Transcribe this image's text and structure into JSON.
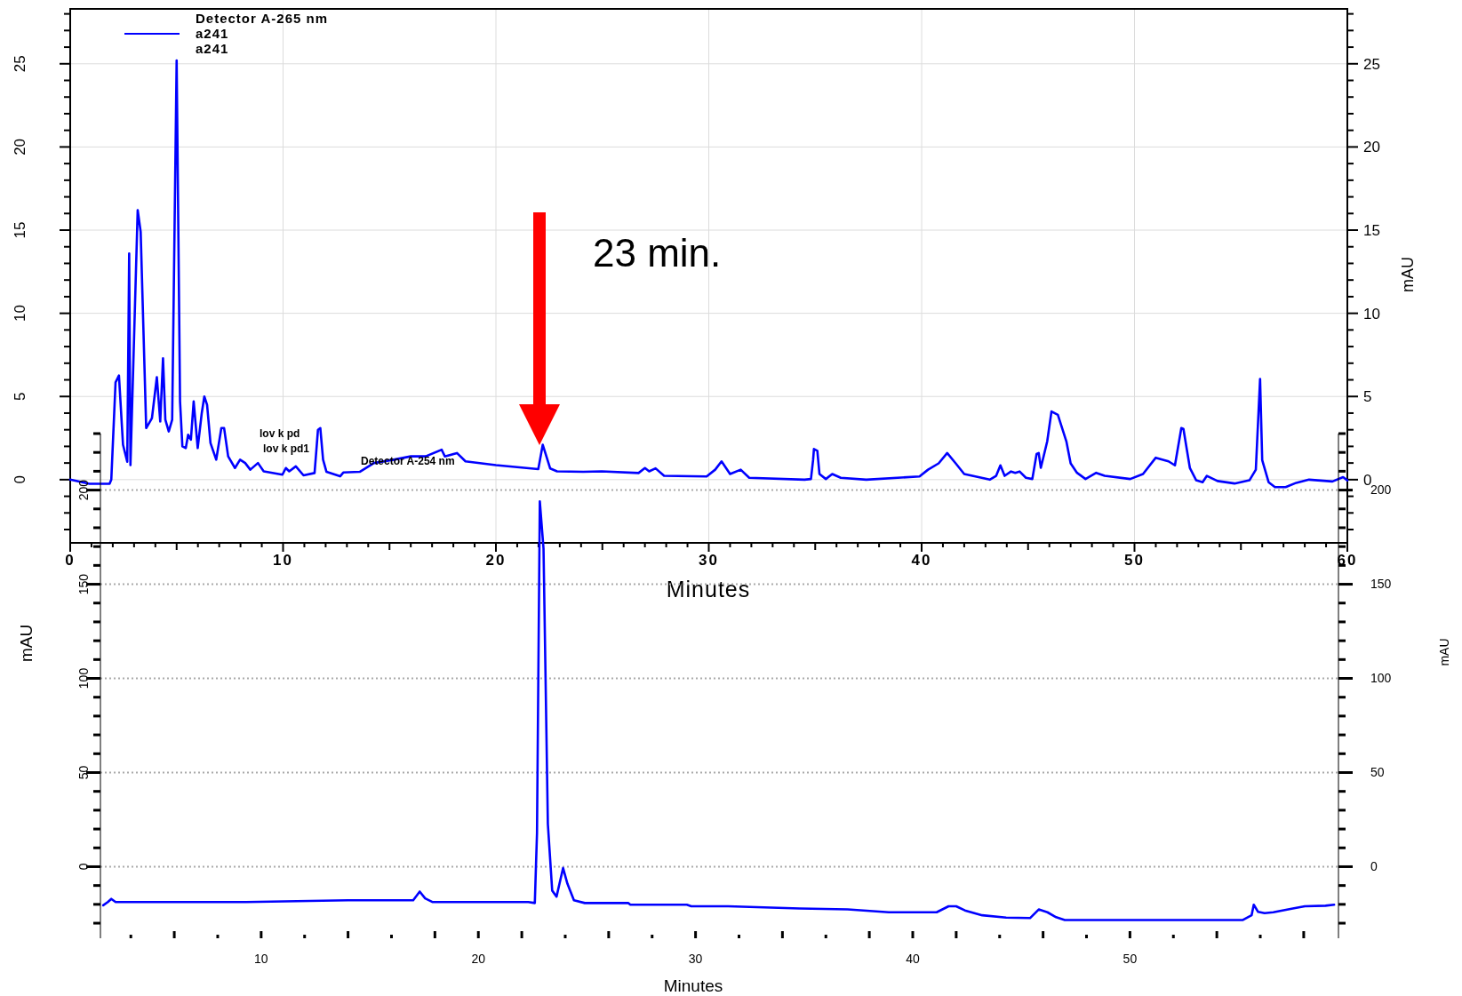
{
  "chart_data": [
    {
      "type": "line",
      "legend_title": "Detector A-265 nm",
      "xlabel": "Minutes",
      "y2label": "mAU",
      "xlim": [
        0,
        60
      ],
      "xticks": [
        0,
        10,
        20,
        30,
        40,
        50,
        60
      ],
      "ylim": [
        -3.8,
        28.3
      ],
      "yticks": [
        0,
        5,
        10,
        15,
        20,
        25
      ],
      "y2lim": [
        -3.8,
        28.3
      ],
      "y2ticks": [
        0,
        5,
        10,
        15,
        20,
        25
      ],
      "grid": true,
      "legend": "top left",
      "marker": "none",
      "line_style": "solid",
      "annotations": [
        "lov k pd",
        "lov k pd1",
        "Detector A-254 nm",
        "23 min."
      ],
      "series": [
        {
          "name": "a241",
          "color": "#0000ff",
          "x": [
            0,
            0.9,
            1.85,
            1.93,
            2.13,
            2.29,
            2.48,
            2.68,
            2.77,
            2.83,
            3.17,
            3.31,
            3.57,
            3.84,
            4.07,
            4.23,
            4.36,
            4.47,
            4.63,
            4.79,
            5.0,
            5.16,
            5.27,
            5.43,
            5.54,
            5.67,
            5.8,
            5.99,
            6.18,
            6.3,
            6.43,
            6.59,
            6.86,
            7.1,
            7.23,
            7.42,
            7.74,
            7.98,
            8.22,
            8.46,
            8.82,
            9.09,
            9.97,
            10.13,
            10.29,
            10.6,
            10.96,
            11.48,
            11.64,
            11.75,
            11.88,
            12.04,
            12.68,
            12.83,
            13.6,
            14.27,
            15.2,
            16.0,
            16.7,
            17.45,
            17.6,
            18.17,
            18.57,
            20.0,
            21.99,
            22.2,
            22.55,
            22.87,
            24.1,
            24.97,
            26.7,
            27.0,
            27.2,
            27.5,
            27.9,
            29.9,
            30.3,
            30.6,
            31.0,
            31.5,
            31.9,
            34.5,
            34.8,
            34.9,
            34.94,
            35.1,
            35.2,
            35.5,
            35.8,
            36.2,
            37.4,
            39.9,
            40.3,
            40.8,
            41.2,
            41.6,
            42.0,
            43.2,
            43.5,
            43.7,
            43.9,
            44.2,
            44.4,
            44.6,
            44.9,
            45.2,
            45.4,
            45.5,
            45.6,
            45.9,
            46.1,
            46.4,
            46.8,
            47.0,
            47.3,
            47.7,
            48.2,
            48.6,
            49.8,
            50.4,
            51.0,
            51.6,
            51.9,
            52.2,
            52.3,
            52.6,
            52.9,
            53.2,
            53.4,
            53.9,
            54.7,
            55.4,
            55.7,
            55.9,
            56.0,
            56.3,
            56.6,
            57.1,
            57.6,
            58.2,
            59.3,
            59.8,
            60.0
          ],
          "values": [
            0,
            -0.25,
            -0.25,
            0,
            5.85,
            6.26,
            2.1,
            1.08,
            13.6,
            0.87,
            16.2,
            14.9,
            3.1,
            3.7,
            6.16,
            3.5,
            7.3,
            3.6,
            2.9,
            3.6,
            25.2,
            4.7,
            2.0,
            1.9,
            2.7,
            2.4,
            4.7,
            1.9,
            4.0,
            5.0,
            4.5,
            2.2,
            1.2,
            3.1,
            3.1,
            1.4,
            0.7,
            1.2,
            1.0,
            0.6,
            1.0,
            0.5,
            0.3,
            0.7,
            0.5,
            0.8,
            0.26,
            0.4,
            3.0,
            3.1,
            1.2,
            0.47,
            0.2,
            0.43,
            0.47,
            1.0,
            1.2,
            1.4,
            1.4,
            1.8,
            1.4,
            1.6,
            1.1,
            0.87,
            0.63,
            2.1,
            0.67,
            0.5,
            0.47,
            0.5,
            0.4,
            0.7,
            0.5,
            0.68,
            0.23,
            0.19,
            0.6,
            1.1,
            0.34,
            0.6,
            0.11,
            0,
            0.04,
            1.17,
            1.84,
            1.73,
            0.34,
            0.04,
            0.34,
            0.11,
            0,
            0.19,
            0.6,
            0.98,
            1.6,
            0.98,
            0.34,
            0,
            0.23,
            0.86,
            0.23,
            0.49,
            0.41,
            0.49,
            0.11,
            0.04,
            1.54,
            1.6,
            0.71,
            2.3,
            4.1,
            3.9,
            2.3,
            0.98,
            0.41,
            0.04,
            0.41,
            0.23,
            0.04,
            0.34,
            1.32,
            1.1,
            0.86,
            3.1,
            3.05,
            0.71,
            -0.04,
            -0.15,
            0.23,
            -0.08,
            -0.23,
            -0.04,
            0.6,
            6.05,
            1.17,
            -0.15,
            -0.45,
            -0.45,
            -0.19,
            0,
            -0.11,
            0.15,
            -0.04
          ]
        }
      ]
    },
    {
      "type": "line",
      "xlabel": "Minutes",
      "ylabel": "mAU",
      "y2label": "mAU",
      "xlim": [
        2.6,
        59.6
      ],
      "xticks": [
        10,
        20,
        30,
        40,
        50
      ],
      "ylim": [
        -38,
        230
      ],
      "yticks": [
        0,
        50,
        100,
        150,
        200
      ],
      "y2lim": [
        -38,
        230
      ],
      "y2ticks": [
        0,
        50,
        100,
        150,
        200
      ],
      "grid": "y",
      "legend": false,
      "marker": "none",
      "line_style": "solid",
      "series": [
        {
          "name": "a241",
          "color": "#0000ff",
          "x": [
            2.73,
            2.94,
            3.1,
            3.3,
            4.0,
            9.3,
            14.0,
            17.0,
            17.3,
            17.55,
            17.9,
            22.3,
            22.6,
            22.7,
            22.83,
            23.0,
            23.2,
            23.4,
            23.6,
            23.9,
            24.1,
            24.4,
            24.9,
            26.9,
            27.0,
            29.6,
            29.8,
            31.5,
            34.8,
            37.0,
            38.9,
            41.1,
            41.65,
            42.0,
            42.4,
            43.2,
            44.3,
            45.4,
            45.8,
            46.2,
            46.6,
            47.0,
            55.2,
            55.6,
            55.7,
            55.9,
            56.2,
            56.6,
            57.5,
            58.05,
            59.0,
            59.4
          ],
          "values": [
            -20.5,
            -18.8,
            -17.1,
            -18.8,
            -18.8,
            -18.8,
            -17.8,
            -17.8,
            -13.2,
            -16.8,
            -18.8,
            -18.8,
            -19.3,
            17.8,
            194,
            169,
            22.7,
            -12.7,
            -15.9,
            -0.7,
            -9,
            -17.8,
            -19.3,
            -19.3,
            -20.2,
            -20.2,
            -21,
            -21,
            -22.2,
            -22.7,
            -24.2,
            -24.2,
            -21,
            -21,
            -23.2,
            -25.8,
            -27,
            -27.3,
            -22.7,
            -24.2,
            -26.8,
            -28.3,
            -28.3,
            -25.8,
            -20.2,
            -24,
            -24.7,
            -24.2,
            -22.2,
            -21,
            -20.7,
            -20.2
          ]
        }
      ]
    }
  ]
}
